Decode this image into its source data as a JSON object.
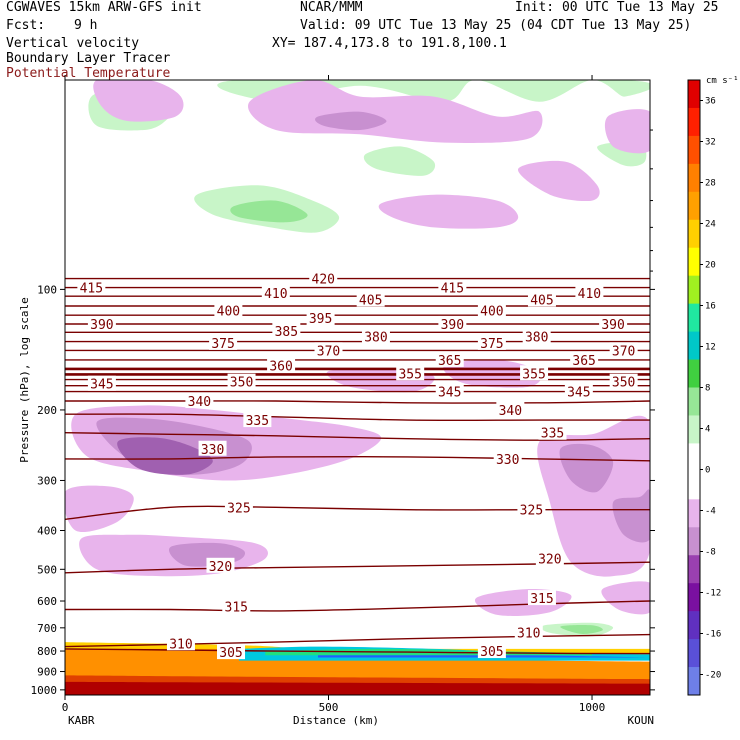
{
  "header": {
    "model": "CGWAVES 15km ARW-GFS init",
    "agency": "NCAR/MMM",
    "init": "Init: 00 UTC Tue 13 May 25",
    "fcst_label": "Fcst:",
    "fcst_value": "9 h",
    "valid": "Valid: 09 UTC Tue 13 May 25 (04 CDT Tue 13 May 25)",
    "field1": "Vertical velocity",
    "field2": "Boundary Layer Tracer",
    "field3": "Potential Temperature",
    "xy": "XY= 187.4,173.8 to 191.8,100.1"
  },
  "colors": {
    "theta": "#7a0000",
    "field3_text": "#8b1a1a",
    "up_light": "#c8f5c8",
    "up_mid": "#96e696",
    "down_light": "#e8b4ec",
    "down_mid": "#c890d0",
    "down_dark": "#a060b0"
  },
  "chart_data": {
    "type": "heatmap",
    "xlabel": "Distance (km)",
    "ylabel": "Pressure (hPa), log scale",
    "xlim": [
      0,
      1110
    ],
    "ylim": [
      1030,
      30
    ],
    "y_scale": "log",
    "x_ticks": [
      0,
      500,
      1000
    ],
    "y_ticks": [
      100,
      200,
      300,
      400,
      500,
      600,
      700,
      800,
      900,
      1000
    ],
    "endpoints": {
      "left": "KABR",
      "right": "KOUN"
    },
    "colorbar": {
      "units": "cm s⁻¹",
      "levels": [
        -20,
        -16,
        -12,
        -8,
        -4,
        0,
        4,
        8,
        12,
        16,
        20,
        24,
        28,
        32,
        36
      ],
      "colors": [
        "#6e7fe8",
        "#5a50d8",
        "#6030c0",
        "#7a10a0",
        "#9a40b0",
        "#c890d0",
        "#e8b4ec",
        "#ffffff",
        "#ffffff",
        "#c8f5c8",
        "#96e696",
        "#40d040",
        "#00c8c8",
        "#20e8a0",
        "#a0f020",
        "#ffff00",
        "#ffd000",
        "#ffa000",
        "#ff8000",
        "#ff5000",
        "#ff2000",
        "#e00000"
      ]
    },
    "theta_contours": [
      {
        "value": 305,
        "pressure": [
          790,
          795,
          800,
          805,
          810,
          812
        ]
      },
      {
        "value": 310,
        "pressure": [
          780,
          770,
          760,
          745,
          735,
          728
        ]
      },
      {
        "value": 315,
        "pressure": [
          630,
          630,
          635,
          625,
          610,
          600
        ]
      },
      {
        "value": 320,
        "pressure": [
          510,
          500,
          495,
          490,
          485,
          480
        ]
      },
      {
        "value": 325,
        "pressure": [
          375,
          350,
          350,
          355,
          355,
          355
        ]
      },
      {
        "value": 330,
        "pressure": [
          265,
          265,
          262,
          262,
          265,
          268
        ]
      },
      {
        "value": 335,
        "pressure": [
          228,
          230,
          232,
          236,
          238,
          236
        ]
      },
      {
        "value": 340,
        "pressure": [
          205,
          205,
          208,
          212,
          212,
          212
        ]
      },
      {
        "value": 345,
        "pressure": [
          190,
          190,
          190,
          192,
          192,
          190
        ]
      },
      {
        "value": 350,
        "pressure": [
          180,
          180,
          180,
          180,
          180,
          180
        ]
      },
      {
        "value": 355,
        "pressure": [
          174,
          174,
          174,
          174,
          174,
          174
        ]
      },
      {
        "value": 360,
        "pressure": [
          168,
          168,
          168,
          168,
          168,
          168
        ]
      },
      {
        "value": 365,
        "pressure": [
          163,
          163,
          163,
          163,
          163,
          163
        ]
      },
      {
        "value": 370,
        "pressure": [
          158,
          158,
          158,
          158,
          158,
          158
        ]
      },
      {
        "value": 375,
        "pressure": [
          150,
          150,
          150,
          150,
          150,
          150
        ]
      },
      {
        "value": 380,
        "pressure": [
          142,
          142,
          142,
          142,
          142,
          142
        ]
      },
      {
        "value": 385,
        "pressure": [
          135,
          135,
          135,
          135,
          135,
          135
        ]
      },
      {
        "value": 390,
        "pressure": [
          128,
          128,
          128,
          128,
          128,
          128
        ]
      },
      {
        "value": 395,
        "pressure": [
          122,
          122,
          122,
          122,
          122,
          122
        ]
      },
      {
        "value": 400,
        "pressure": [
          116,
          116,
          116,
          116,
          116,
          116
        ]
      },
      {
        "value": 405,
        "pressure": [
          110,
          110,
          110,
          110,
          110,
          110
        ]
      },
      {
        "value": 410,
        "pressure": [
          104,
          104,
          104,
          104,
          104,
          104
        ]
      },
      {
        "value": 415,
        "pressure": [
          99,
          99,
          99,
          99,
          99,
          99
        ]
      },
      {
        "value": 420,
        "pressure": [
          94,
          94,
          94,
          94,
          94,
          94
        ]
      }
    ],
    "theta_x": [
      0,
      200,
      400,
      650,
      900,
      1110
    ],
    "theta_labels": [
      {
        "text": "420",
        "x": 490,
        "p": 94
      },
      {
        "text": "415",
        "x": 50,
        "p": 99
      },
      {
        "text": "415",
        "x": 735,
        "p": 99
      },
      {
        "text": "410",
        "x": 400,
        "p": 102
      },
      {
        "text": "410",
        "x": 995,
        "p": 102
      },
      {
        "text": "405",
        "x": 580,
        "p": 106
      },
      {
        "text": "405",
        "x": 905,
        "p": 106
      },
      {
        "text": "400",
        "x": 310,
        "p": 113
      },
      {
        "text": "400",
        "x": 810,
        "p": 113
      },
      {
        "text": "395",
        "x": 485,
        "p": 118
      },
      {
        "text": "390",
        "x": 70,
        "p": 122
      },
      {
        "text": "390",
        "x": 735,
        "p": 122
      },
      {
        "text": "390",
        "x": 1040,
        "p": 122
      },
      {
        "text": "385",
        "x": 420,
        "p": 127
      },
      {
        "text": "380",
        "x": 590,
        "p": 131
      },
      {
        "text": "380",
        "x": 895,
        "p": 131
      },
      {
        "text": "375",
        "x": 300,
        "p": 136
      },
      {
        "text": "375",
        "x": 810,
        "p": 136
      },
      {
        "text": "370",
        "x": 500,
        "p": 142
      },
      {
        "text": "370",
        "x": 1060,
        "p": 142
      },
      {
        "text": "365",
        "x": 730,
        "p": 150
      },
      {
        "text": "365",
        "x": 985,
        "p": 150
      },
      {
        "text": "360",
        "x": 410,
        "p": 155
      },
      {
        "text": "355",
        "x": 655,
        "p": 162
      },
      {
        "text": "355",
        "x": 890,
        "p": 162
      },
      {
        "text": "350",
        "x": 335,
        "p": 170
      },
      {
        "text": "350",
        "x": 1060,
        "p": 170
      },
      {
        "text": "345",
        "x": 70,
        "p": 172
      },
      {
        "text": "345",
        "x": 730,
        "p": 180
      },
      {
        "text": "345",
        "x": 975,
        "p": 180
      },
      {
        "text": "340",
        "x": 255,
        "p": 190
      },
      {
        "text": "340",
        "x": 845,
        "p": 200
      },
      {
        "text": "335",
        "x": 365,
        "p": 212
      },
      {
        "text": "335",
        "x": 925,
        "p": 228
      },
      {
        "text": "330",
        "x": 280,
        "p": 250
      },
      {
        "text": "330",
        "x": 840,
        "p": 265
      },
      {
        "text": "325",
        "x": 330,
        "p": 350
      },
      {
        "text": "325",
        "x": 885,
        "p": 355
      },
      {
        "text": "320",
        "x": 295,
        "p": 490
      },
      {
        "text": "320",
        "x": 920,
        "p": 470
      },
      {
        "text": "315",
        "x": 325,
        "p": 620
      },
      {
        "text": "315",
        "x": 905,
        "p": 590
      },
      {
        "text": "310",
        "x": 220,
        "p": 765
      },
      {
        "text": "310",
        "x": 880,
        "p": 720
      },
      {
        "text": "305",
        "x": 315,
        "p": 805
      },
      {
        "text": "305",
        "x": 810,
        "p": 800
      }
    ],
    "updraft_regions": [
      {
        "x": [
          50,
          120,
          190,
          190,
          150,
          60
        ],
        "p": [
          33,
          32,
          36,
          38,
          40,
          39
        ],
        "level": 1
      },
      {
        "x": [
          330,
          400,
          560,
          720,
          780,
          900,
          1000,
          1060,
          1060
        ],
        "p": [
          30,
          34,
          31,
          34,
          30,
          34,
          30,
          33,
          30
        ],
        "level": 1
      },
      {
        "x": [
          570,
          640,
          700,
          680,
          590
        ],
        "p": [
          46,
          44,
          48,
          52,
          50
        ],
        "level": 1
      },
      {
        "x": [
          1010,
          1090,
          1100,
          1060
        ],
        "p": [
          44,
          43,
          48,
          49
        ],
        "level": 1
      },
      {
        "x": [
          250,
          370,
          470,
          520,
          480,
          390,
          280
        ],
        "p": [
          58,
          55,
          60,
          66,
          72,
          70,
          65
        ],
        "level": 1
      },
      {
        "x": [
          320,
          400,
          460,
          420,
          330
        ],
        "p": [
          62,
          60,
          65,
          68,
          66
        ],
        "level": 2
      },
      {
        "x": [
          910,
          1000,
          1040,
          1000,
          920
        ],
        "p": [
          690,
          680,
          700,
          735,
          720
        ],
        "level": 1
      },
      {
        "x": [
          940,
          1000,
          1020,
          980
        ],
        "p": [
          695,
          690,
          710,
          725
        ],
        "level": 2
      }
    ],
    "downdraft_regions": [
      {
        "x": [
          60,
          160,
          220,
          210,
          120,
          70
        ],
        "p": [
          30,
          30,
          33,
          37,
          38,
          35
        ],
        "level": 1
      },
      {
        "x": [
          350,
          470,
          560,
          700,
          820,
          900,
          880,
          720,
          560,
          400
        ],
        "p": [
          34,
          30,
          33,
          33,
          37,
          36,
          42,
          43,
          41,
          40
        ],
        "level": 1
      },
      {
        "x": [
          480,
          560,
          610,
          560,
          490
        ],
        "p": [
          37,
          36,
          38,
          40,
          39
        ],
        "level": 2
      },
      {
        "x": [
          1030,
          1110,
          1110,
          1040
        ],
        "p": [
          37,
          36,
          45,
          44
        ],
        "level": 1
      },
      {
        "x": [
          600,
          700,
          820,
          860,
          820,
          700,
          620
        ],
        "p": [
          61,
          58,
          60,
          66,
          70,
          70,
          66
        ],
        "level": 1
      },
      {
        "x": [
          860,
          950,
          1010,
          1000,
          920
        ],
        "p": [
          50,
          48,
          55,
          60,
          58
        ],
        "level": 1
      },
      {
        "x": [
          720,
          820,
          900,
          880,
          760
        ],
        "p": [
          155,
          150,
          160,
          175,
          172
        ],
        "level": 1
      },
      {
        "x": [
          500,
          620,
          700,
          660,
          540
        ],
        "p": [
          160,
          158,
          165,
          180,
          175
        ],
        "level": 1
      },
      {
        "x": [
          20,
          150,
          280,
          420,
          540,
          600,
          540,
          420,
          300,
          160,
          40
        ],
        "p": [
          205,
          195,
          200,
          210,
          220,
          235,
          265,
          290,
          300,
          285,
          260
        ],
        "level": 1
      },
      {
        "x": [
          60,
          150,
          260,
          350,
          330,
          230,
          120
        ],
        "p": [
          215,
          210,
          220,
          240,
          275,
          290,
          265
        ],
        "level": 2
      },
      {
        "x": [
          100,
          180,
          250,
          280,
          230,
          140
        ],
        "p": [
          240,
          235,
          250,
          270,
          290,
          280
        ],
        "level": 3
      },
      {
        "x": [
          0,
          80,
          130,
          100,
          20
        ],
        "p": [
          320,
          310,
          330,
          380,
          400
        ],
        "level": 1
      },
      {
        "x": [
          30,
          120,
          220,
          360,
          380,
          300,
          180,
          60
        ],
        "p": [
          420,
          410,
          415,
          430,
          470,
          510,
          520,
          500
        ],
        "level": 1
      },
      {
        "x": [
          200,
          290,
          340,
          320,
          230
        ],
        "p": [
          440,
          430,
          450,
          480,
          490
        ],
        "level": 2
      },
      {
        "x": [
          900,
          1000,
          1110,
          1110,
          1040,
          960,
          920
        ],
        "p": [
          240,
          230,
          215,
          450,
          520,
          480,
          340
        ],
        "level": 1
      },
      {
        "x": [
          940,
          1000,
          1040,
          1010,
          960
        ],
        "p": [
          250,
          245,
          270,
          320,
          300
        ],
        "level": 2
      },
      {
        "x": [
          1040,
          1090,
          1110,
          1110,
          1060
        ],
        "p": [
          340,
          330,
          320,
          420,
          410
        ],
        "level": 2
      },
      {
        "x": [
          780,
          880,
          960,
          920,
          820
        ],
        "p": [
          590,
          560,
          580,
          640,
          650
        ],
        "level": 1
      },
      {
        "x": [
          1020,
          1110,
          1110,
          1050
        ],
        "p": [
          560,
          540,
          640,
          630
        ],
        "level": 1
      }
    ]
  }
}
